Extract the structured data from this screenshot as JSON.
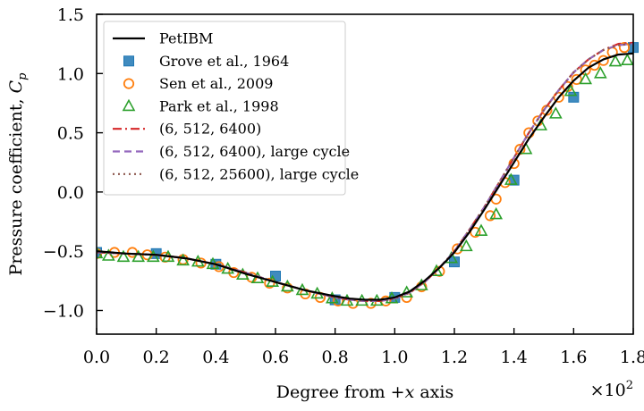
{
  "chart_data": {
    "type": "line",
    "xlabel_prefix": "Degree from +",
    "xlabel_var": "x",
    "xlabel_suffix": " axis",
    "ylabel_prefix": "Pressure coefficient, ",
    "ylabel_var": "C",
    "ylabel_sub": "p",
    "x_multiplier_base": "×10",
    "x_multiplier_exp": "2",
    "xlim": [
      0.0,
      1.8
    ],
    "ylim": [
      -1.2,
      1.5
    ],
    "grid": false,
    "legend_position": "upper-left",
    "x_ticks": [
      {
        "value": 0.0,
        "label": "0.0"
      },
      {
        "value": 0.2,
        "label": "0.2"
      },
      {
        "value": 0.4,
        "label": "0.4"
      },
      {
        "value": 0.6,
        "label": "0.6"
      },
      {
        "value": 0.8,
        "label": "0.8"
      },
      {
        "value": 1.0,
        "label": "1.0"
      },
      {
        "value": 1.2,
        "label": "1.2"
      },
      {
        "value": 1.4,
        "label": "1.4"
      },
      {
        "value": 1.6,
        "label": "1.6"
      },
      {
        "value": 1.8,
        "label": "1.8"
      }
    ],
    "y_ticks": [
      {
        "value": -1.0,
        "label": "−1.0"
      },
      {
        "value": -0.5,
        "label": "−0.5"
      },
      {
        "value": 0.0,
        "label": "0.0"
      },
      {
        "value": 0.5,
        "label": "0.5"
      },
      {
        "value": 1.0,
        "label": "1.0"
      },
      {
        "value": 1.5,
        "label": "1.5"
      }
    ],
    "series": [
      {
        "name": "PetIBM",
        "kind": "line",
        "color": "#000000",
        "dash": "",
        "x": [
          0.0,
          0.1,
          0.2,
          0.3,
          0.4,
          0.5,
          0.6,
          0.7,
          0.8,
          0.85,
          0.9,
          0.95,
          1.0,
          1.05,
          1.1,
          1.15,
          1.2,
          1.25,
          1.3,
          1.35,
          1.4,
          1.45,
          1.5,
          1.55,
          1.6,
          1.65,
          1.7,
          1.75,
          1.8
        ],
        "y": [
          -0.5,
          -0.52,
          -0.53,
          -0.56,
          -0.61,
          -0.69,
          -0.76,
          -0.83,
          -0.88,
          -0.9,
          -0.91,
          -0.91,
          -0.89,
          -0.84,
          -0.75,
          -0.64,
          -0.51,
          -0.34,
          -0.15,
          0.05,
          0.25,
          0.45,
          0.63,
          0.8,
          0.94,
          1.05,
          1.12,
          1.16,
          1.17
        ]
      },
      {
        "name": "Grove et al., 1964",
        "kind": "square",
        "color": "#1f77b4",
        "x": [
          0.0,
          0.2,
          0.4,
          0.6,
          0.8,
          1.0,
          1.2,
          1.4,
          1.6,
          1.8
        ],
        "y": [
          -0.51,
          -0.52,
          -0.61,
          -0.71,
          -0.91,
          -0.89,
          -0.59,
          0.1,
          0.8,
          1.22
        ]
      },
      {
        "name": "Sen et al., 2009",
        "kind": "circle",
        "color": "#ff7f0e",
        "x": [
          0.0,
          0.06,
          0.12,
          0.17,
          0.23,
          0.29,
          0.35,
          0.41,
          0.46,
          0.52,
          0.58,
          0.64,
          0.7,
          0.75,
          0.81,
          0.86,
          0.92,
          0.97,
          1.04,
          1.09,
          1.15,
          1.21,
          1.27,
          1.32,
          1.34,
          1.37,
          1.4,
          1.42,
          1.45,
          1.48,
          1.51,
          1.55,
          1.58,
          1.61,
          1.64,
          1.67,
          1.7,
          1.73,
          1.77
        ],
        "y": [
          -0.52,
          -0.51,
          -0.51,
          -0.53,
          -0.55,
          -0.57,
          -0.6,
          -0.63,
          -0.68,
          -0.72,
          -0.77,
          -0.81,
          -0.86,
          -0.89,
          -0.92,
          -0.94,
          -0.94,
          -0.92,
          -0.89,
          -0.8,
          -0.67,
          -0.48,
          -0.34,
          -0.2,
          -0.06,
          0.08,
          0.24,
          0.36,
          0.5,
          0.6,
          0.69,
          0.8,
          0.89,
          0.95,
          1.03,
          1.07,
          1.11,
          1.18,
          1.22
        ]
      },
      {
        "name": "Park et al., 1998",
        "kind": "triangle",
        "color": "#2ca02c",
        "x": [
          0.0,
          0.04,
          0.09,
          0.14,
          0.19,
          0.24,
          0.29,
          0.34,
          0.39,
          0.44,
          0.49,
          0.54,
          0.59,
          0.64,
          0.69,
          0.74,
          0.79,
          0.84,
          0.89,
          0.94,
          0.99,
          1.04,
          1.09,
          1.14,
          1.19,
          1.24,
          1.29,
          1.34,
          1.39,
          1.44,
          1.49,
          1.54,
          1.59,
          1.64,
          1.69,
          1.74,
          1.78
        ],
        "y": [
          -0.52,
          -0.54,
          -0.55,
          -0.55,
          -0.55,
          -0.55,
          -0.58,
          -0.59,
          -0.61,
          -0.65,
          -0.7,
          -0.73,
          -0.76,
          -0.8,
          -0.83,
          -0.86,
          -0.9,
          -0.92,
          -0.92,
          -0.92,
          -0.9,
          -0.85,
          -0.79,
          -0.67,
          -0.56,
          -0.46,
          -0.33,
          -0.19,
          0.1,
          0.36,
          0.56,
          0.66,
          0.85,
          0.95,
          1.0,
          1.1,
          1.11
        ]
      },
      {
        "name": "(6, 512, 6400)",
        "kind": "line",
        "color": "#d62728",
        "dash": "10,4,2,4",
        "x": [
          0.0,
          0.1,
          0.2,
          0.3,
          0.4,
          0.5,
          0.6,
          0.7,
          0.8,
          0.85,
          0.9,
          0.95,
          1.0,
          1.05,
          1.1,
          1.15,
          1.2,
          1.25,
          1.3,
          1.35,
          1.4,
          1.45,
          1.5,
          1.55,
          1.6,
          1.65,
          1.7,
          1.75,
          1.8
        ],
        "y": [
          -0.51,
          -0.52,
          -0.53,
          -0.56,
          -0.61,
          -0.68,
          -0.76,
          -0.83,
          -0.89,
          -0.91,
          -0.92,
          -0.92,
          -0.9,
          -0.85,
          -0.76,
          -0.64,
          -0.5,
          -0.32,
          -0.13,
          0.08,
          0.29,
          0.5,
          0.69,
          0.86,
          1.01,
          1.12,
          1.2,
          1.25,
          1.26
        ]
      },
      {
        "name": "(6, 512, 6400), large cycle",
        "kind": "line",
        "color": "#9467bd",
        "dash": "8,5",
        "x": [
          0.0,
          0.1,
          0.2,
          0.3,
          0.4,
          0.5,
          0.6,
          0.7,
          0.8,
          0.85,
          0.9,
          0.95,
          1.0,
          1.05,
          1.1,
          1.15,
          1.2,
          1.25,
          1.3,
          1.35,
          1.4,
          1.45,
          1.5,
          1.55,
          1.6,
          1.65,
          1.7,
          1.75,
          1.8
        ],
        "y": [
          -0.51,
          -0.52,
          -0.53,
          -0.56,
          -0.61,
          -0.68,
          -0.76,
          -0.83,
          -0.89,
          -0.91,
          -0.92,
          -0.92,
          -0.9,
          -0.85,
          -0.76,
          -0.64,
          -0.5,
          -0.32,
          -0.13,
          0.08,
          0.29,
          0.5,
          0.69,
          0.86,
          1.01,
          1.12,
          1.2,
          1.24,
          1.25
        ]
      },
      {
        "name": "(6, 512, 25600), large cycle",
        "kind": "line",
        "color": "#8c564b",
        "dash": "2,4",
        "x": [
          0.0,
          0.1,
          0.2,
          0.3,
          0.4,
          0.5,
          0.6,
          0.7,
          0.8,
          0.85,
          0.9,
          0.95,
          1.0,
          1.05,
          1.1,
          1.15,
          1.2,
          1.25,
          1.3,
          1.35,
          1.4,
          1.45,
          1.5,
          1.55,
          1.6,
          1.65,
          1.7,
          1.75,
          1.8
        ],
        "y": [
          -0.51,
          -0.52,
          -0.53,
          -0.56,
          -0.61,
          -0.68,
          -0.76,
          -0.83,
          -0.89,
          -0.91,
          -0.92,
          -0.92,
          -0.9,
          -0.85,
          -0.76,
          -0.64,
          -0.5,
          -0.32,
          -0.13,
          0.08,
          0.29,
          0.5,
          0.69,
          0.86,
          1.01,
          1.12,
          1.2,
          1.24,
          1.25
        ]
      }
    ]
  }
}
